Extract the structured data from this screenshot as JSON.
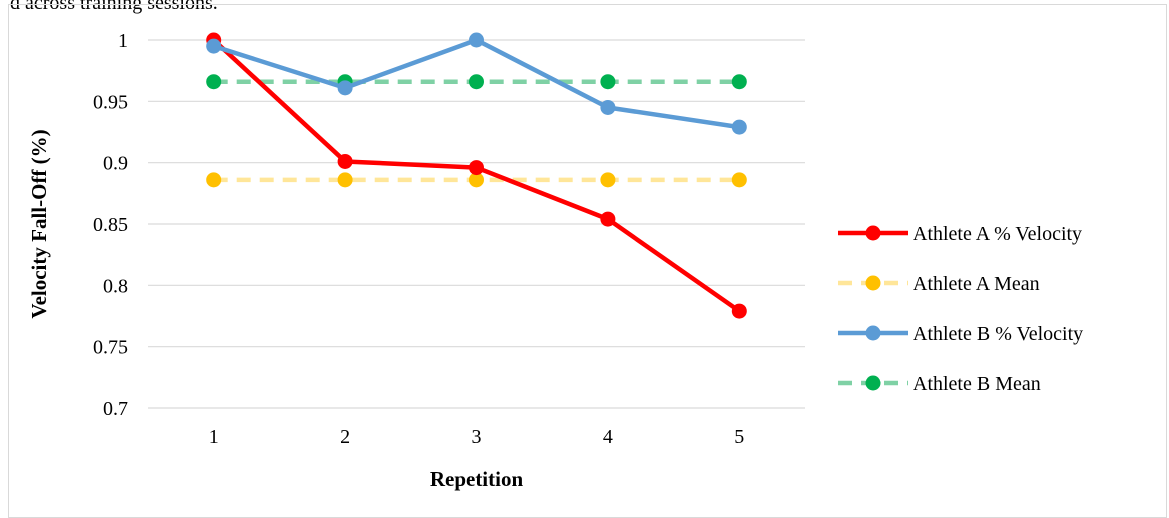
{
  "caption_fragment": "d across training sessions.",
  "chart_data": {
    "type": "line",
    "title": "",
    "xlabel": "Repetition",
    "ylabel": "Velocity Fall-Off (%)",
    "categories": [
      "1",
      "2",
      "3",
      "4",
      "5"
    ],
    "ylim": [
      0.7,
      1.0
    ],
    "yticks": [
      "0.7",
      "0.75",
      "0.8",
      "0.85",
      "0.9",
      "0.95",
      "1"
    ],
    "grid": true,
    "legend_position": "right",
    "series": [
      {
        "name": "Athlete A % Velocity",
        "values": [
          1.0,
          0.901,
          0.896,
          0.854,
          0.779
        ],
        "color": "#ff0000",
        "marker_color": "#ff0000",
        "dashed": false
      },
      {
        "name": "Athlete A Mean",
        "values": [
          0.886,
          0.886,
          0.886,
          0.886,
          0.886
        ],
        "color": "#ffe699",
        "marker_color": "#ffc000",
        "dashed": true
      },
      {
        "name": "Athlete B % Velocity",
        "values": [
          0.995,
          0.961,
          1.0,
          0.945,
          0.929
        ],
        "color": "#5b9bd5",
        "marker_color": "#5b9bd5",
        "dashed": false
      },
      {
        "name": "Athlete B Mean",
        "values": [
          0.966,
          0.966,
          0.966,
          0.966,
          0.966
        ],
        "color": "#7fd1a5",
        "marker_color": "#00b050",
        "dashed": true
      }
    ]
  }
}
